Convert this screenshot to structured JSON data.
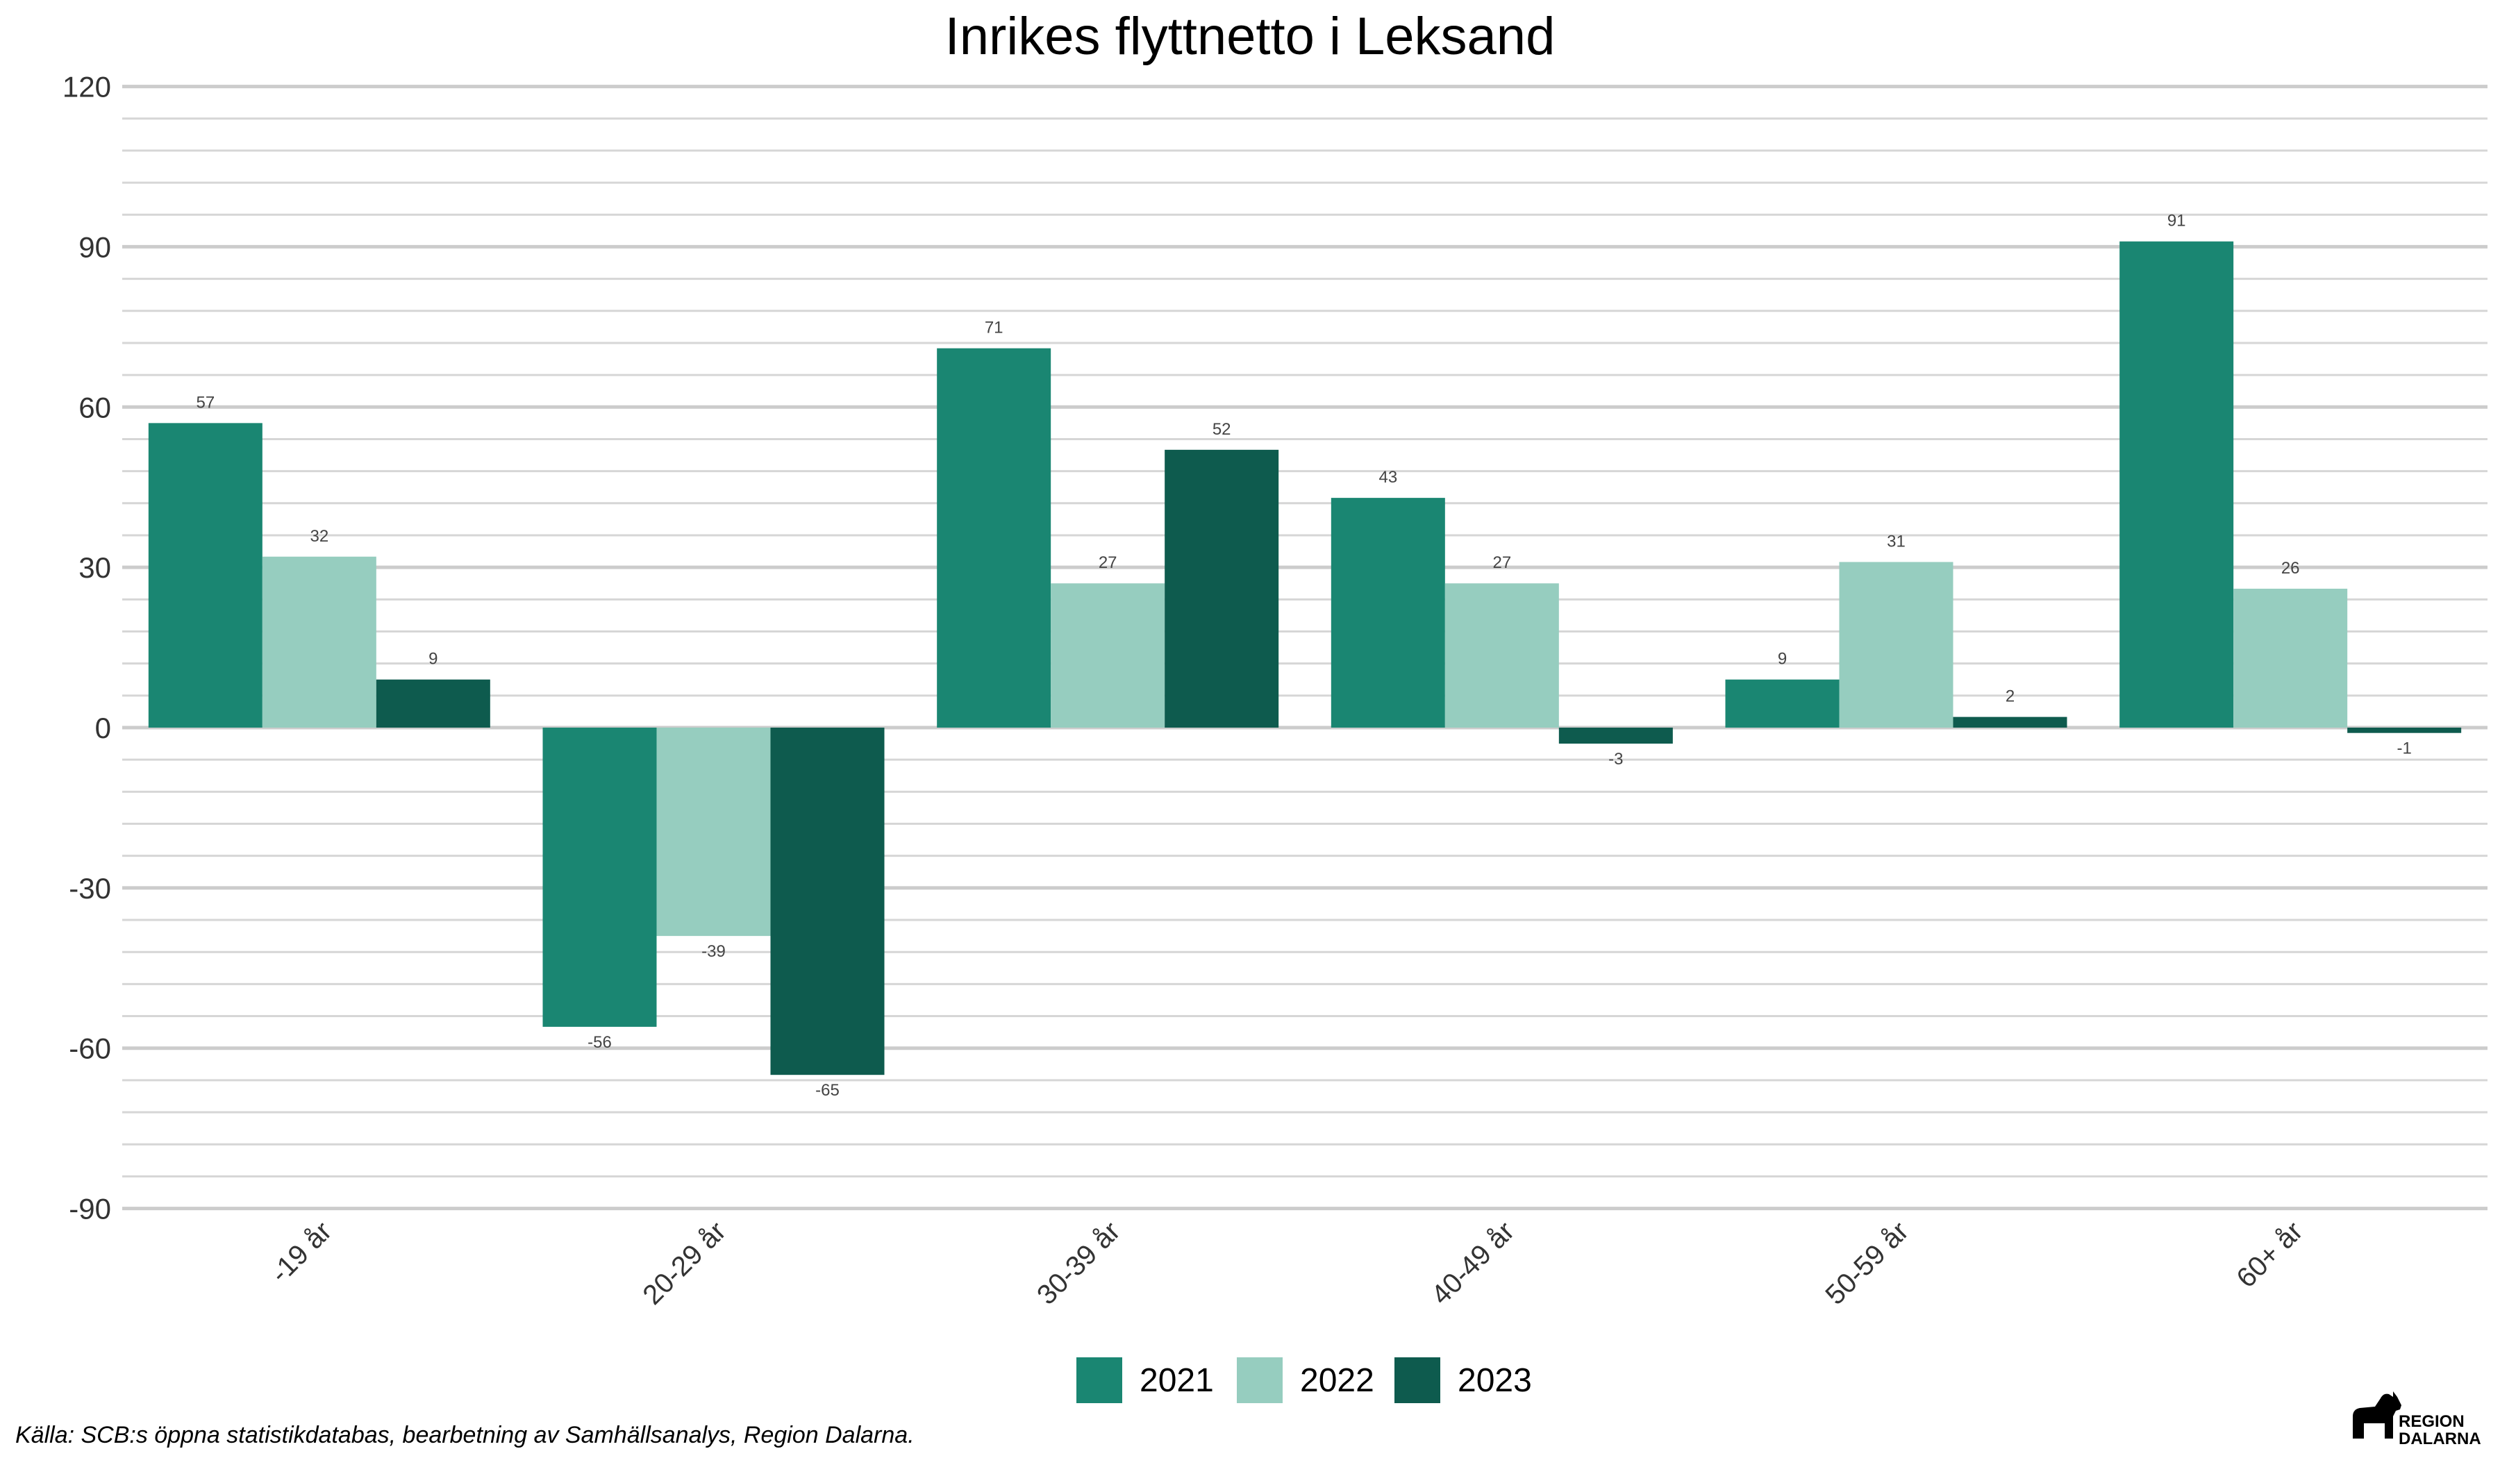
{
  "chart_data": {
    "type": "bar",
    "title": "Inrikes flyttnetto i Leksand",
    "xlabel": "",
    "ylabel": "",
    "categories": [
      "-19 år",
      "20-29 år",
      "30-39 år",
      "40-49 år",
      "50-59 år",
      "60+ år"
    ],
    "series": [
      {
        "name": "2021",
        "color": "#1a8672",
        "values": [
          57,
          -56,
          71,
          43,
          9,
          91
        ]
      },
      {
        "name": "2022",
        "color": "#96cdbf",
        "values": [
          32,
          -39,
          27,
          27,
          31,
          26
        ]
      },
      {
        "name": "2023",
        "color": "#0e5b4e",
        "values": [
          9,
          -65,
          52,
          -3,
          2,
          -1
        ]
      }
    ],
    "ylim": [
      -90,
      120
    ],
    "yticks": [
      -90,
      -60,
      -30,
      0,
      30,
      60,
      90,
      120
    ],
    "minor_grid_step": 6,
    "grid": true,
    "legend_position": "bottom",
    "caption": "Källa: SCB:s öppna statistikdatabas, bearbetning av Samhällsanalys, Region Dalarna.",
    "logo_text": [
      "REGION",
      "DALARNA"
    ]
  }
}
